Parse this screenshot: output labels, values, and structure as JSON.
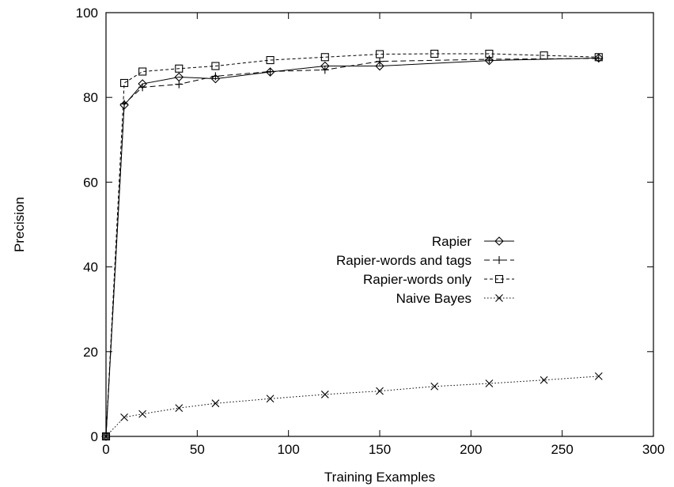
{
  "chart_data": {
    "type": "line",
    "title": "",
    "xlabel": "Training Examples",
    "ylabel": "Precision",
    "xlim": [
      0,
      300
    ],
    "ylim": [
      0,
      100
    ],
    "xticks": [
      "0",
      "50",
      "100",
      "150",
      "200",
      "250",
      "300"
    ],
    "yticks": [
      "0",
      "20",
      "40",
      "60",
      "80",
      "100"
    ],
    "grid": false,
    "legend_position": "center-right",
    "series": [
      {
        "name": "Rapier",
        "marker": "diamond",
        "dash": "solid",
        "x": [
          0,
          10,
          20,
          40,
          60,
          90,
          120,
          150,
          210,
          270
        ],
        "y": [
          0,
          78.2,
          83.2,
          84.8,
          84.4,
          86.0,
          87.4,
          87.4,
          88.7,
          89.3
        ]
      },
      {
        "name": "Rapier-words and tags",
        "marker": "plus",
        "dash": "dashed",
        "x": [
          0,
          10,
          20,
          40,
          60,
          90,
          120,
          150,
          210,
          270
        ],
        "y": [
          0,
          78.5,
          82.4,
          83.1,
          85.0,
          86.1,
          86.5,
          88.5,
          89.0,
          89.2
        ]
      },
      {
        "name": "Rapier-words only",
        "marker": "square",
        "dash": "dash-dot",
        "x": [
          0,
          10,
          20,
          40,
          60,
          90,
          120,
          150,
          180,
          210,
          240,
          270
        ],
        "y": [
          0,
          83.4,
          86.1,
          86.8,
          87.4,
          88.8,
          89.5,
          90.2,
          90.3,
          90.3,
          89.9,
          89.5
        ]
      },
      {
        "name": "Naive Bayes",
        "marker": "cross",
        "dash": "dotted",
        "x": [
          0,
          10,
          20,
          40,
          60,
          90,
          120,
          150,
          180,
          210,
          240,
          270
        ],
        "y": [
          0,
          4.5,
          5.3,
          6.7,
          7.8,
          8.9,
          9.9,
          10.7,
          11.8,
          12.5,
          13.3,
          14.2
        ]
      }
    ]
  }
}
